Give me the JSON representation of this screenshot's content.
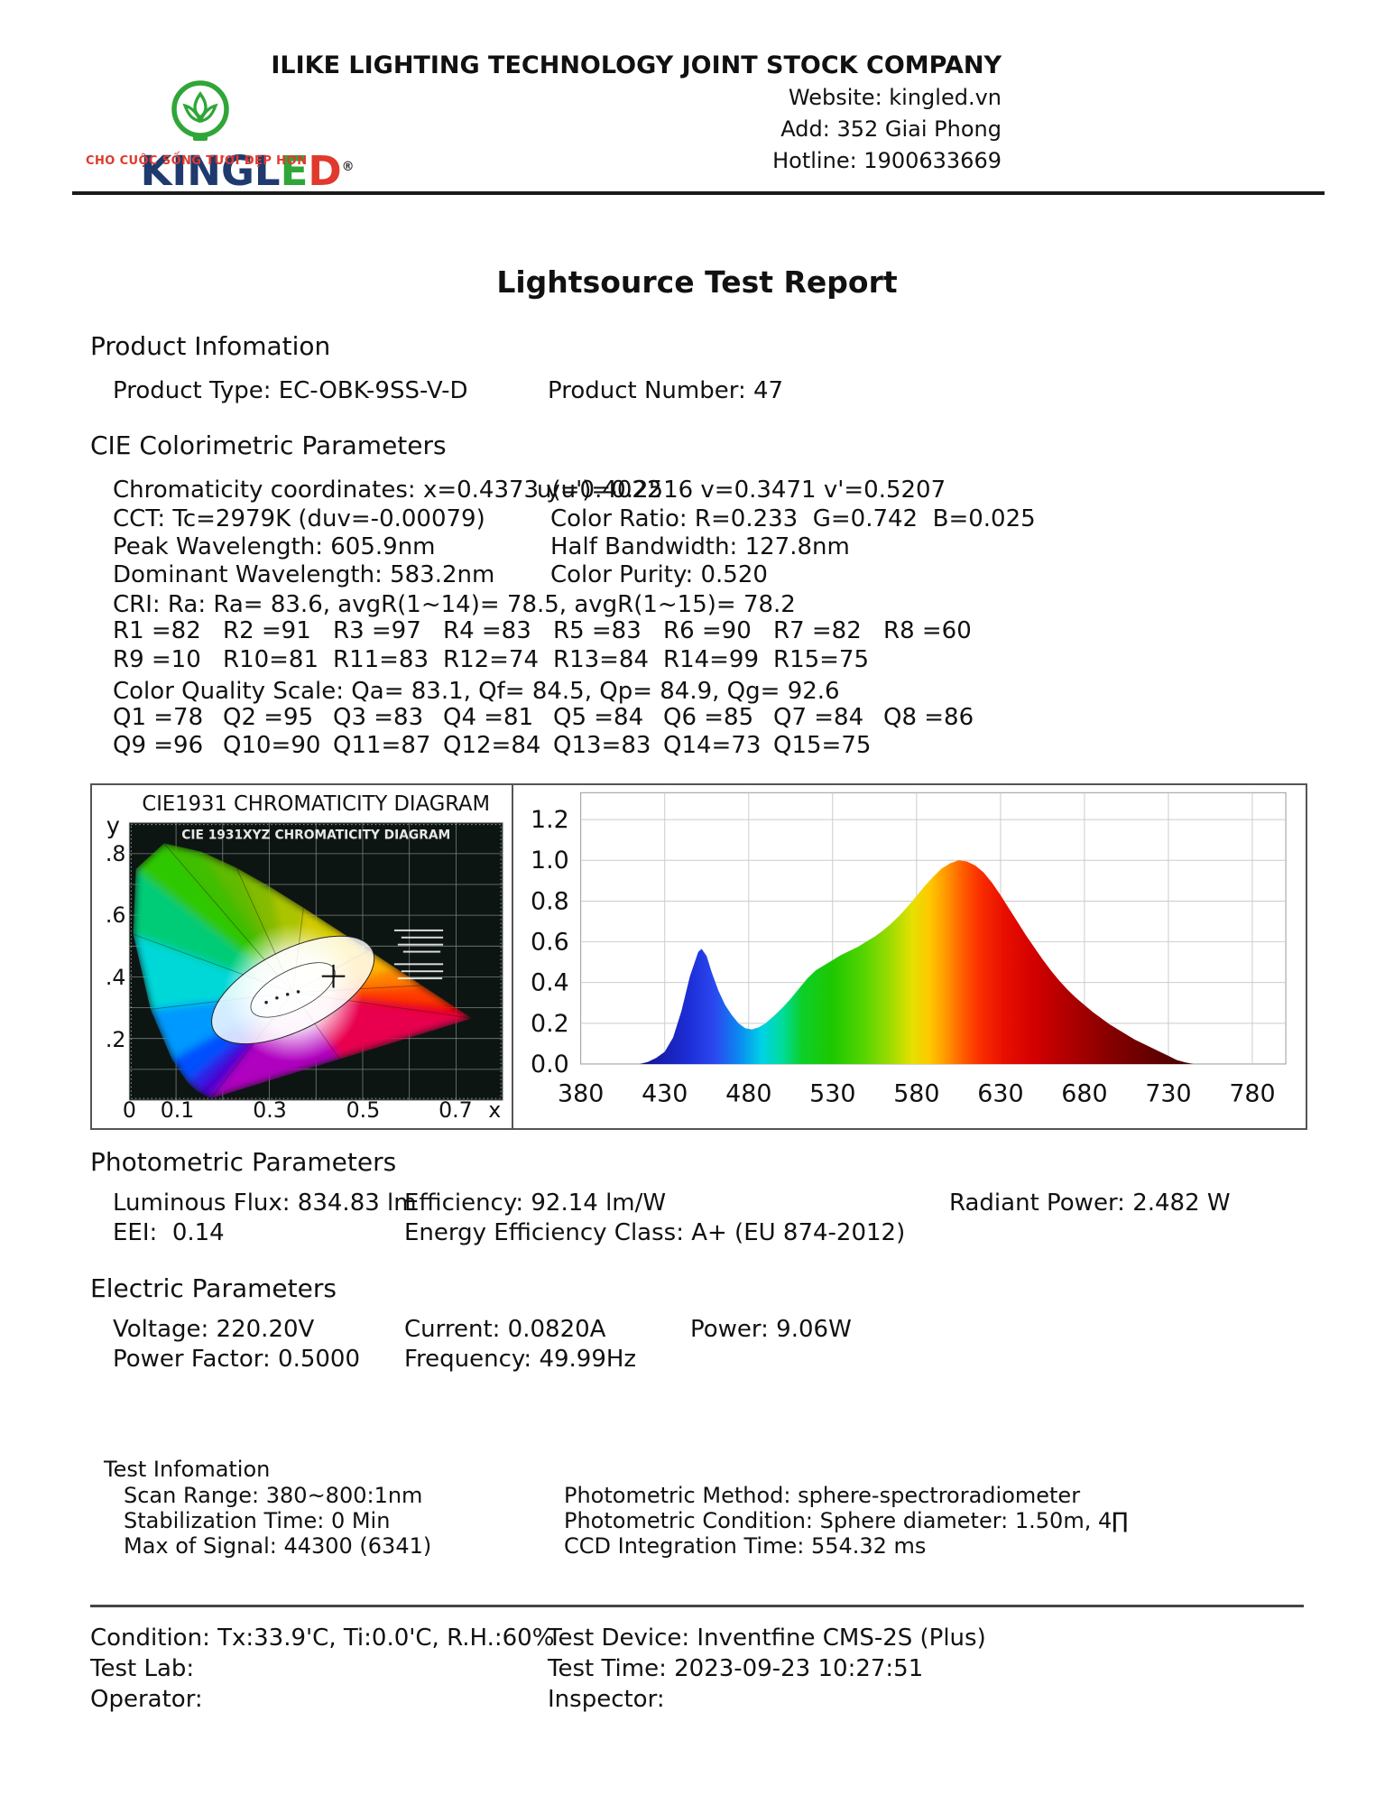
{
  "header": {
    "logo": {
      "kingl": "KINGL",
      "e": "E",
      "d": "D",
      "registered": "®",
      "tagline": "CHO CUỘC SỐNG TƯƠI ĐẸP HƠN",
      "bulb_icon": "lotus-bulb-icon",
      "colors": {
        "navy": "#1e3a6e",
        "green": "#2fa637",
        "red": "#e0392d"
      }
    },
    "company": "ILIKE LIGHTING TECHNOLOGY JOINT STOCK COMPANY",
    "website": "Website: kingled.vn",
    "address": "Add: 352 Giai Phong",
    "hotline": "Hotline: 1900633669"
  },
  "title": "Lightsource Test Report",
  "product": {
    "heading": "Product Infomation",
    "type": "Product Type: EC-OBK-9SS-V-D",
    "number": "Product Number: 47"
  },
  "cie": {
    "heading": "CIE Colorimetric Parameters",
    "chromaticity": "Chromaticity coordinates: x=0.4373 y=0.4022",
    "uv": "u(u')=0.2516 v=0.3471 v'=0.5207",
    "cct": "CCT: Tc=2979K (duv=-0.00079)",
    "color_ratio": "Color Ratio: R=0.233  G=0.742  B=0.025",
    "peak_wavelength": "Peak Wavelength: 605.9nm",
    "half_bandwidth": "Half Bandwidth: 127.8nm",
    "dominant_wavelength": "Dominant Wavelength: 583.2nm",
    "color_purity": "Color Purity: 0.520",
    "cri": "CRI: Ra: Ra= 83.6, avgR(1~14)= 78.5, avgR(1~15)= 78.2",
    "r_values": [
      "R1 =82",
      "R2 =91",
      "R3 =97",
      "R4 =83",
      "R5 =83",
      "R6 =90",
      "R7 =82",
      "R8 =60",
      "R9 =10",
      "R10=81",
      "R11=83",
      "R12=74",
      "R13=84",
      "R14=99",
      "R15=75"
    ],
    "cqs": "Color Quality Scale: Qa= 83.1, Qf= 84.5, Qp= 84.9, Qg= 92.6",
    "q_values": [
      "Q1 =78",
      "Q2 =95",
      "Q3 =83",
      "Q4 =81",
      "Q5 =84",
      "Q6 =85",
      "Q7 =84",
      "Q8 =86",
      "Q9 =96",
      "Q10=90",
      "Q11=87",
      "Q12=84",
      "Q13=83",
      "Q14=73",
      "Q15=75"
    ]
  },
  "photometric": {
    "heading": "Photometric Parameters",
    "luminous_flux": "Luminous Flux: 834.83 lm",
    "efficiency": "Efficiency: 92.14 lm/W",
    "radiant_power": "Radiant Power: 2.482 W",
    "eei": "EEI:  0.14",
    "energy_class": "Energy Efficiency Class: A+ (EU 874-2012)"
  },
  "electric": {
    "heading": "Electric Parameters",
    "voltage": "Voltage: 220.20V",
    "current": "Current: 0.0820A",
    "power": "Power: 9.06W",
    "power_factor": "Power Factor: 0.5000",
    "frequency": "Frequency: 49.99Hz"
  },
  "test_info": {
    "heading": "Test Infomation",
    "scan_range": "Scan Range: 380~800:1nm",
    "stabilization": "Stabilization Time: 0 Min",
    "max_signal": "Max of Signal: 44300 (6341)",
    "method": "Photometric Method: sphere-spectroradiometer",
    "condition": "Photometric Condition: Sphere diameter: 1.50m, 4∏",
    "ccd": "CCD Integration Time: 554.32 ms"
  },
  "footer": {
    "condition": "Condition: Tx:33.9'C, Ti:0.0'C, R.H.:60%",
    "test_lab": "Test Lab:",
    "operator": "Operator:",
    "device": "Test Device: Inventfine CMS-2S (Plus)",
    "time": "Test Time: 2023-09-23 10:27:51",
    "inspector": "Inspector:"
  },
  "chart_data": [
    {
      "type": "chromaticity_diagram",
      "title": "CIE1931 CHROMATICITY DIAGRAM",
      "inner_title": "CIE 1931XYZ CHROMATICITY DIAGRAM",
      "x_axis_label": "x",
      "y_axis_label": "y",
      "x_ticks": [
        "0",
        "0.1",
        "0.3",
        "0.5",
        "0.7"
      ],
      "y_ticks": [
        ".8",
        ".6",
        ".4",
        ".2"
      ],
      "x_range": [
        0,
        0.8
      ],
      "y_range": [
        0,
        0.9
      ],
      "grid": true,
      "marker": {
        "x": 0.4373,
        "y": 0.4022
      }
    },
    {
      "type": "area",
      "subtype": "spectral_power_distribution",
      "x_ticks": [
        "380",
        "430",
        "480",
        "530",
        "580",
        "630",
        "680",
        "730",
        "780"
      ],
      "y_ticks": [
        "0.0",
        "0.2",
        "0.4",
        "0.6",
        "0.8",
        "1.0",
        "1.2"
      ],
      "xlim": [
        380,
        800
      ],
      "ylim": [
        0,
        1.25
      ],
      "grid": true,
      "points": [
        [
          415,
          0
        ],
        [
          420,
          0.01
        ],
        [
          425,
          0.03
        ],
        [
          430,
          0.06
        ],
        [
          435,
          0.13
        ],
        [
          440,
          0.26
        ],
        [
          445,
          0.43
        ],
        [
          450,
          0.55
        ],
        [
          452,
          0.565
        ],
        [
          455,
          0.53
        ],
        [
          458,
          0.45
        ],
        [
          462,
          0.36
        ],
        [
          466,
          0.29
        ],
        [
          470,
          0.24
        ],
        [
          474,
          0.2
        ],
        [
          478,
          0.175
        ],
        [
          482,
          0.17
        ],
        [
          486,
          0.18
        ],
        [
          490,
          0.2
        ],
        [
          495,
          0.235
        ],
        [
          500,
          0.275
        ],
        [
          505,
          0.32
        ],
        [
          510,
          0.37
        ],
        [
          515,
          0.42
        ],
        [
          520,
          0.46
        ],
        [
          525,
          0.485
        ],
        [
          530,
          0.51
        ],
        [
          535,
          0.535
        ],
        [
          540,
          0.555
        ],
        [
          545,
          0.575
        ],
        [
          550,
          0.6
        ],
        [
          555,
          0.625
        ],
        [
          560,
          0.655
        ],
        [
          565,
          0.69
        ],
        [
          570,
          0.73
        ],
        [
          575,
          0.775
        ],
        [
          580,
          0.825
        ],
        [
          585,
          0.875
        ],
        [
          590,
          0.92
        ],
        [
          595,
          0.96
        ],
        [
          600,
          0.985
        ],
        [
          605,
          1.0
        ],
        [
          610,
          0.995
        ],
        [
          615,
          0.975
        ],
        [
          620,
          0.94
        ],
        [
          625,
          0.89
        ],
        [
          630,
          0.83
        ],
        [
          635,
          0.765
        ],
        [
          640,
          0.7
        ],
        [
          645,
          0.635
        ],
        [
          650,
          0.575
        ],
        [
          655,
          0.515
        ],
        [
          660,
          0.46
        ],
        [
          665,
          0.41
        ],
        [
          670,
          0.365
        ],
        [
          675,
          0.325
        ],
        [
          680,
          0.29
        ],
        [
          685,
          0.255
        ],
        [
          690,
          0.225
        ],
        [
          695,
          0.195
        ],
        [
          700,
          0.17
        ],
        [
          705,
          0.145
        ],
        [
          710,
          0.12
        ],
        [
          715,
          0.1
        ],
        [
          720,
          0.08
        ],
        [
          725,
          0.06
        ],
        [
          730,
          0.04
        ],
        [
          735,
          0.02
        ],
        [
          740,
          0.008
        ],
        [
          745,
          0
        ]
      ]
    }
  ]
}
